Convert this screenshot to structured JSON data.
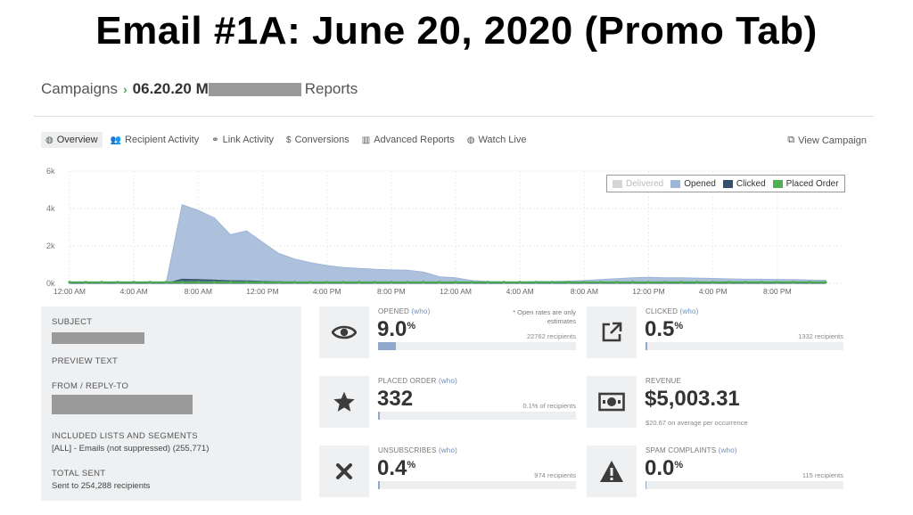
{
  "slide_title": "Email #1A: June 20, 2020 (Promo Tab)",
  "breadcrumb": {
    "root": "Campaigns",
    "campaign": "06.20.20 M",
    "section": "Reports"
  },
  "tabs": [
    {
      "label": "Overview",
      "icon": "globe-icon",
      "active": true
    },
    {
      "label": "Recipient Activity",
      "icon": "users-icon"
    },
    {
      "label": "Link Activity",
      "icon": "link-icon"
    },
    {
      "label": "Conversions",
      "icon": "dollar-icon"
    },
    {
      "label": "Advanced Reports",
      "icon": "bar-chart-icon"
    },
    {
      "label": "Watch Live",
      "icon": "globe-icon"
    }
  ],
  "view_campaign": "View Campaign",
  "chart_data": {
    "type": "area",
    "ylim": [
      0,
      6000
    ],
    "y_ticks": [
      "6k",
      "4k",
      "2k",
      "0k"
    ],
    "x_tick_labels": [
      "12:00 AM",
      "4:00 AM",
      "8:00 AM",
      "12:00 PM",
      "4:00 PM",
      "8:00 PM",
      "12:00 AM",
      "4:00 AM",
      "8:00 AM",
      "12:00 PM",
      "4:00 PM",
      "8:00 PM"
    ],
    "x_hours": [
      0,
      1,
      2,
      3,
      4,
      5,
      6,
      7,
      8,
      9,
      10,
      11,
      12,
      13,
      14,
      15,
      16,
      17,
      18,
      19,
      20,
      21,
      22,
      23,
      24,
      25,
      26,
      27,
      28,
      29,
      30,
      31,
      32,
      33,
      34,
      35,
      36,
      37,
      38,
      39,
      40,
      41,
      42,
      43,
      44,
      45,
      46,
      47
    ],
    "legend_position": "top-right",
    "series": [
      {
        "name": "Delivered",
        "color": "#cccccc",
        "hidden": true,
        "values": []
      },
      {
        "name": "Opened",
        "color": "#9fb5d6",
        "values": [
          0,
          0,
          0,
          0,
          0,
          0,
          0,
          4200,
          3900,
          3500,
          2600,
          2800,
          2200,
          1600,
          1300,
          1100,
          950,
          850,
          800,
          750,
          720,
          700,
          600,
          350,
          300,
          150,
          100,
          80,
          80,
          100,
          100,
          120,
          150,
          200,
          250,
          300,
          320,
          300,
          300,
          280,
          260,
          240,
          220,
          220,
          210,
          200,
          180,
          160
        ]
      },
      {
        "name": "Clicked",
        "color": "#34506f",
        "values": [
          0,
          0,
          0,
          0,
          0,
          0,
          0,
          220,
          200,
          170,
          140,
          130,
          110,
          90,
          70,
          60,
          50,
          45,
          40,
          35,
          30,
          28,
          25,
          20,
          18,
          15,
          12,
          10,
          10,
          10,
          10,
          12,
          14,
          15,
          16,
          18,
          20,
          18,
          18,
          16,
          15,
          14,
          13,
          13,
          12,
          12,
          11,
          10
        ]
      },
      {
        "name": "Placed Order",
        "color": "#4caf50",
        "values": [
          60,
          60,
          60,
          60,
          60,
          60,
          60,
          60,
          60,
          60,
          60,
          60,
          60,
          60,
          60,
          60,
          60,
          60,
          60,
          60,
          60,
          60,
          60,
          60,
          60,
          60,
          60,
          60,
          60,
          60,
          60,
          60,
          60,
          60,
          60,
          60,
          60,
          60,
          60,
          60,
          60,
          60,
          60,
          60,
          60,
          60,
          60,
          60
        ]
      }
    ]
  },
  "summary": {
    "subject_label": "SUBJECT",
    "preview_label": "PREVIEW TEXT",
    "from_label": "FROM / REPLY-TO",
    "lists_label": "INCLUDED LISTS AND SEGMENTS",
    "lists_value": "[ALL] - Emails (not suppressed) (255,771)",
    "total_label": "TOTAL SENT",
    "total_value": "Sent to 254,288 recipients"
  },
  "cards": {
    "opened": {
      "label": "OPENED",
      "who": "(who)",
      "value": "9.0",
      "unit": "%",
      "note": "* Open rates are only estimates",
      "sub": "22762 recipients",
      "fraction": 0.09,
      "icon": "eye-icon"
    },
    "clicked": {
      "label": "CLICKED",
      "who": "(who)",
      "value": "0.5",
      "unit": "%",
      "sub": "1332 recipients",
      "fraction": 0.005,
      "icon": "external-link-icon"
    },
    "placed": {
      "label": "PLACED ORDER",
      "who": "(who)",
      "value": "332",
      "sub": "0.1% of recipients",
      "fraction": 0.001,
      "icon": "star-icon"
    },
    "revenue": {
      "label": "REVENUE",
      "value": "$5,003.31",
      "sub": "$20.67 on average per occurrence",
      "icon": "cash-icon"
    },
    "unsub": {
      "label": "UNSUBSCRIBES",
      "who": "(who)",
      "value": "0.4",
      "unit": "%",
      "sub": "974 recipients",
      "fraction": 0.004,
      "icon": "x-icon"
    },
    "spam": {
      "label": "SPAM COMPLAINTS",
      "who": "(who)",
      "value": "0.0",
      "unit": "%",
      "sub": "115 recipients",
      "fraction": 0.0,
      "icon": "warning-icon"
    }
  }
}
